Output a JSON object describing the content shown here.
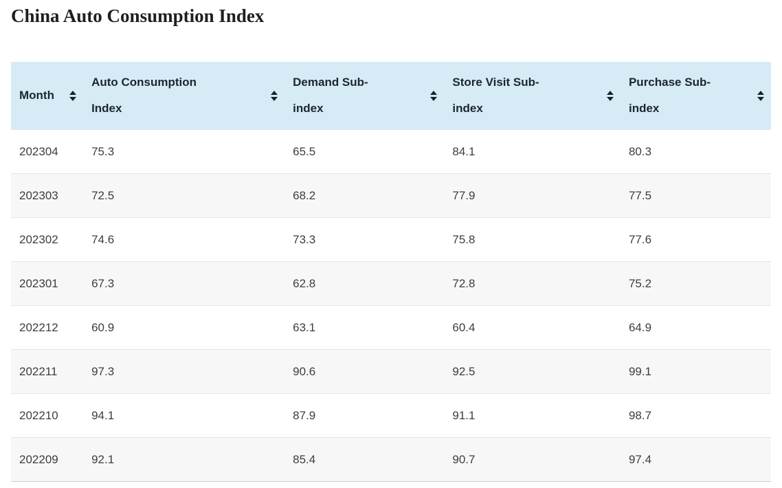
{
  "page": {
    "title": "China Auto Consumption Index"
  },
  "colors": {
    "header_bg": "#d6ebf5",
    "header_text": "#1b2631",
    "row_alt_bg": "#f7f7f7",
    "row_bg": "#ffffff",
    "row_border": "#e4e4e4",
    "body_text": "#3d3d3d",
    "sort_icon": "#16212b"
  },
  "table": {
    "columns": [
      {
        "id": "month",
        "label": "Month",
        "sort_icon": "sort-arrows-icon"
      },
      {
        "id": "auto-consumption-index",
        "label": "Auto Consumption\nIndex",
        "sort_icon": "sort-arrows-icon"
      },
      {
        "id": "demand-sub-index",
        "label": "Demand Sub-\nindex",
        "sort_icon": "sort-arrows-icon"
      },
      {
        "id": "store-visit-sub-index",
        "label": "Store Visit Sub-\nindex",
        "sort_icon": "sort-arrows-icon"
      },
      {
        "id": "purchase-sub-index",
        "label": "Purchase Sub-\nindex",
        "sort_icon": "sort-arrows-icon"
      }
    ],
    "rows": [
      [
        "202304",
        "75.3",
        "65.5",
        "84.1",
        "80.3"
      ],
      [
        "202303",
        "72.5",
        "68.2",
        "77.9",
        "77.5"
      ],
      [
        "202302",
        "74.6",
        "73.3",
        "75.8",
        "77.6"
      ],
      [
        "202301",
        "67.3",
        "62.8",
        "72.8",
        "75.2"
      ],
      [
        "202212",
        "60.9",
        "63.1",
        "60.4",
        "64.9"
      ],
      [
        "202211",
        "97.3",
        "90.6",
        "92.5",
        "99.1"
      ],
      [
        "202210",
        "94.1",
        "87.9",
        "91.1",
        "98.7"
      ],
      [
        "202209",
        "92.1",
        "85.4",
        "90.7",
        "97.4"
      ]
    ]
  }
}
